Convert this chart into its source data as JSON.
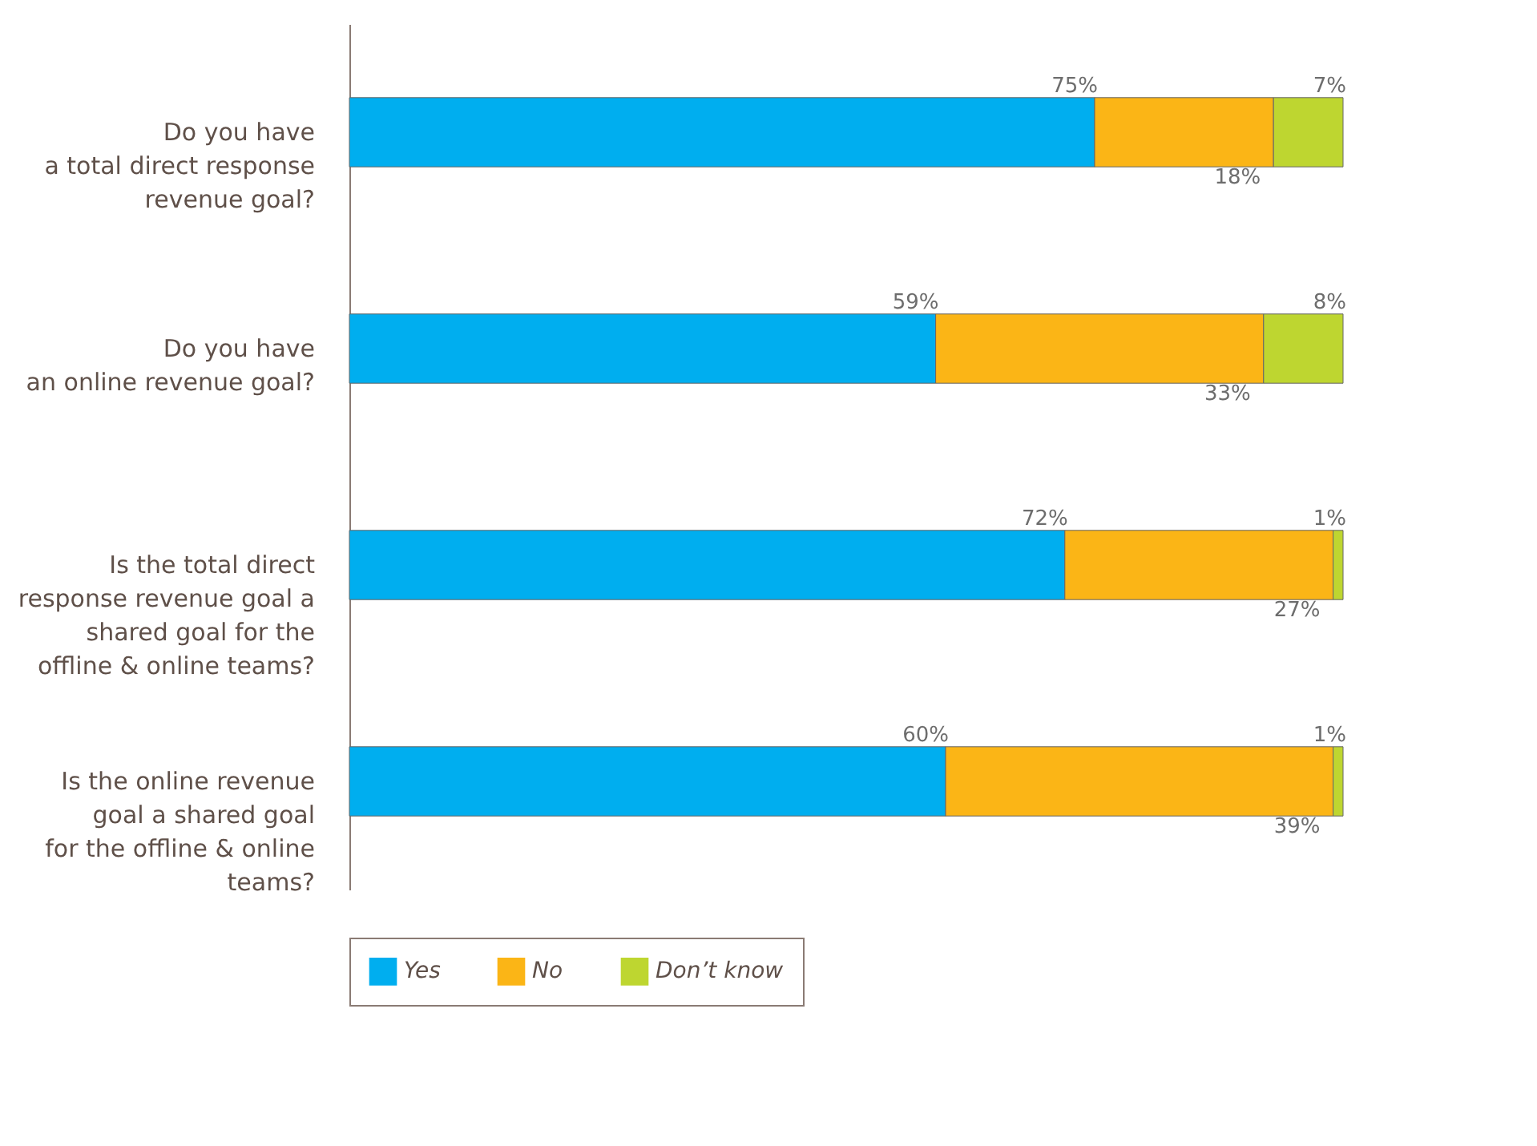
{
  "chart_data": {
    "type": "bar",
    "orientation": "horizontal",
    "stacked": true,
    "legend": "bottom",
    "categories": [
      "Do you have\na total direct response\nrevenue goal?",
      "Do you have\nan online revenue goal?",
      "Is the total direct\nresponse revenue goal a\nshared goal for the\noffline & online teams?",
      "Is the online revenue\ngoal a shared goal\nfor the offline & online\nteams?"
    ],
    "series": [
      {
        "name": "Yes",
        "color": "#00aeef",
        "values": [
          75,
          59,
          72,
          60
        ],
        "value_labels": [
          "75%",
          "59%",
          "72%",
          "60%"
        ]
      },
      {
        "name": "No",
        "color": "#fbb516",
        "values": [
          18,
          33,
          27,
          39
        ],
        "value_labels": [
          "18%",
          "33%",
          "27%",
          "39%"
        ]
      },
      {
        "name": "Don’t know",
        "color": "#bed630",
        "values": [
          7,
          8,
          1,
          1
        ],
        "value_labels": [
          "7%",
          "8%",
          "1%",
          "1%"
        ]
      }
    ]
  }
}
